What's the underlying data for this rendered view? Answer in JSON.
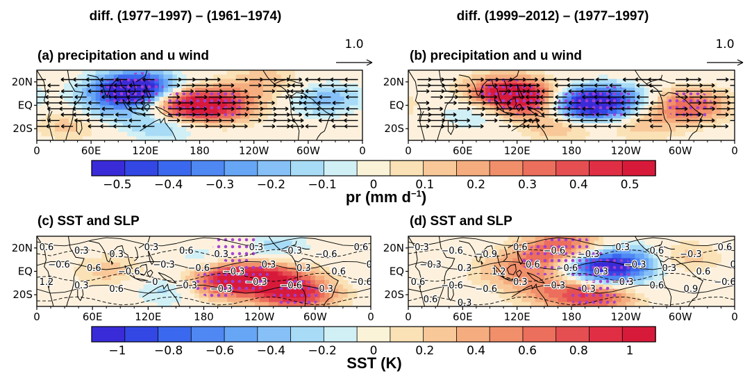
{
  "columns": [
    {
      "title": "diff. (1977–1997) – (1961–1974)"
    },
    {
      "title": "diff. (1999–2012) – (1977–1997)"
    }
  ],
  "reference_vector": {
    "label": "1.0"
  },
  "colorbars": [
    {
      "id": "pr",
      "label": "pr (mm d",
      "label_sup": "−1",
      "label_end": ")",
      "range": [
        -0.55,
        0.55
      ],
      "ticks": [
        "−0.5",
        "−0.4",
        "−0.3",
        "−0.2",
        "−0.1",
        "0",
        "0.1",
        "0.2",
        "0.3",
        "0.4",
        "0.5"
      ],
      "colors": [
        "#3a2bd8",
        "#3347e4",
        "#3a68ee",
        "#4f88f3",
        "#67a5f5",
        "#86c0f7",
        "#a7dbf6",
        "#d0f0f6",
        "#fbf3d8",
        "#fae2b6",
        "#f8c899",
        "#f5ad7f",
        "#f18f6b",
        "#ec6e5c",
        "#e54f52",
        "#e02f44",
        "#d81a3a"
      ]
    },
    {
      "id": "sst",
      "label": "SST (K)",
      "range": [
        -1.1,
        1.1
      ],
      "ticks": [
        "−1",
        "−0.8",
        "−0.6",
        "−0.4",
        "−0.2",
        "0",
        "0.2",
        "0.4",
        "0.6",
        "0.8",
        "1"
      ],
      "colors": [
        "#3a2bd8",
        "#3347e4",
        "#3a68ee",
        "#4f88f3",
        "#67a5f5",
        "#86c0f7",
        "#a7dbf6",
        "#d0f0f6",
        "#fbf3d8",
        "#fae2b6",
        "#f8c899",
        "#f5ad7f",
        "#f18f6b",
        "#ec6e5c",
        "#e54f52",
        "#e02f44",
        "#d81a3a"
      ]
    }
  ],
  "chart_data": [
    {
      "type": "heatmap",
      "title": "(a) precipitation and u wind",
      "x_ticks": [
        "0",
        "60E",
        "120E",
        "180",
        "120W",
        "60W",
        "0"
      ],
      "y_ticks": [
        "20N",
        "EQ",
        "20S"
      ],
      "variable": "precipitation difference (mm d-1) with u-wind vectors and significance stippling",
      "anomalies": [
        {
          "lon": 165,
          "lat": 0,
          "value": 0.5
        },
        {
          "lon": 205,
          "lat": 0,
          "value": 0.35
        },
        {
          "lon": 115,
          "lat": 15,
          "value": -0.45
        },
        {
          "lon": 95,
          "lat": 12,
          "value": -0.3
        },
        {
          "lon": 140,
          "lat": -15,
          "value": -0.2
        },
        {
          "lon": 75,
          "lat": -5,
          "value": -0.15
        },
        {
          "lon": 320,
          "lat": 5,
          "value": -0.2
        },
        {
          "lon": 40,
          "lat": -15,
          "value": 0.15
        },
        {
          "lon": 250,
          "lat": 20,
          "value": 0.15
        }
      ]
    },
    {
      "type": "heatmap",
      "title": "(b) precipitation and u wind",
      "x_ticks": [
        "0",
        "60E",
        "120E",
        "180",
        "120W",
        "60W",
        "0"
      ],
      "y_ticks": [
        "20N",
        "EQ",
        "20S"
      ],
      "variable": "precipitation difference (mm d-1) with u-wind vectors and significance stippling",
      "anomalies": [
        {
          "lon": 125,
          "lat": 5,
          "value": 0.5
        },
        {
          "lon": 105,
          "lat": 12,
          "value": 0.35
        },
        {
          "lon": 190,
          "lat": 0,
          "value": -0.5
        },
        {
          "lon": 225,
          "lat": 3,
          "value": -0.35
        },
        {
          "lon": 310,
          "lat": 0,
          "value": 0.35
        },
        {
          "lon": 80,
          "lat": -5,
          "value": -0.15
        },
        {
          "lon": 165,
          "lat": -15,
          "value": 0.2
        },
        {
          "lon": 260,
          "lat": -15,
          "value": 0.15
        }
      ]
    },
    {
      "type": "heatmap",
      "title": "(c) SST and SLP",
      "x_ticks": [
        "0",
        "60E",
        "120E",
        "180",
        "120W",
        "60W",
        "0"
      ],
      "y_ticks": [
        "20N",
        "EQ",
        "20S"
      ],
      "variable": "SST difference (K) with SLP contours and significance stippling",
      "contour_labels": [
        "0.6",
        "0.3",
        "0.3",
        "0.3",
        "0.6",
        "0.3",
        "0.3",
        "−0.3",
        "−0.6",
        "0.6",
        "−0.6",
        "0.6",
        "−0.6",
        "−0.3",
        "−0.6",
        "−0.3",
        "0.3",
        "0.3",
        "0.6",
        "0.9",
        "1.2",
        "0.3",
        "0.6",
        "−0",
        "−0.3",
        "−0.3",
        "−0.3",
        "−0.6",
        "0.3",
        "−0.6"
      ],
      "anomalies": [
        {
          "lon": 225,
          "lat": -5,
          "value": 0.75
        },
        {
          "lon": 195,
          "lat": -10,
          "value": 0.6
        },
        {
          "lon": 260,
          "lat": -5,
          "value": 0.45
        },
        {
          "lon": 280,
          "lat": -20,
          "value": 0.9
        },
        {
          "lon": 215,
          "lat": 20,
          "value": 0.5
        },
        {
          "lon": 195,
          "lat": 15,
          "value": -0.4
        },
        {
          "lon": 245,
          "lat": 20,
          "value": -0.45
        },
        {
          "lon": 145,
          "lat": -15,
          "value": -0.3
        },
        {
          "lon": 80,
          "lat": 0,
          "value": 0.25
        }
      ]
    },
    {
      "type": "heatmap",
      "title": "(d) SST and SLP",
      "x_ticks": [
        "0",
        "60E",
        "120E",
        "180",
        "120W",
        "60W",
        "0"
      ],
      "y_ticks": [
        "20N",
        "EQ",
        "20S"
      ],
      "variable": "SST difference (K) with SLP contours and significance stippling",
      "contour_labels": [
        "−0.3",
        "−0.6",
        "−0.9",
        "0.6",
        "−0.6",
        "−0.3",
        "0.3",
        "0.6",
        "−0.3",
        "0.6",
        "−0.3",
        "0.3",
        "1.2",
        "0.6",
        "−0.6",
        "0.3",
        "−0.3",
        "0.3",
        "0.6",
        "0.3",
        "0.6",
        "−0.6",
        "−0.6",
        "0.3",
        "−0.3",
        "0.3",
        "−0.3",
        "0.6",
        "0.9",
        "−0.6",
        "0.6",
        "0.3"
      ],
      "anomalies": [
        {
          "lon": 200,
          "lat": 5,
          "value": -0.7
        },
        {
          "lon": 225,
          "lat": 0,
          "value": -0.55
        },
        {
          "lon": 250,
          "lat": 10,
          "value": -0.4
        },
        {
          "lon": 150,
          "lat": 10,
          "value": 0.5
        },
        {
          "lon": 155,
          "lat": -15,
          "value": 0.45
        },
        {
          "lon": 175,
          "lat": 22,
          "value": 0.6
        },
        {
          "lon": 205,
          "lat": -22,
          "value": 0.8
        },
        {
          "lon": 110,
          "lat": 0,
          "value": 0.3
        },
        {
          "lon": 300,
          "lat": 12,
          "value": 0.3
        }
      ]
    }
  ]
}
